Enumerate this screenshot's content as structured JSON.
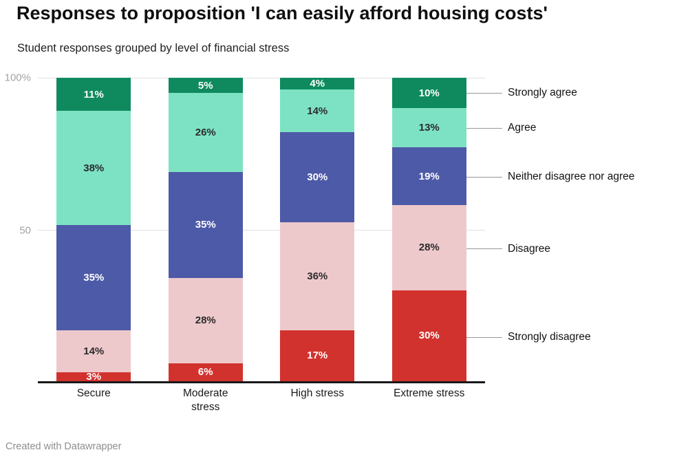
{
  "header": {
    "title": "Responses to proposition 'I can easily afford housing costs'",
    "subtitle": "Student responses grouped by level of financial stress"
  },
  "chart_data": {
    "type": "bar",
    "stacked": true,
    "title": "Responses to proposition 'I can easily afford housing costs'",
    "subtitle": "Student responses grouped by level of financial stress",
    "xlabel": "",
    "ylabel": "",
    "value_suffix": "%",
    "categories": [
      "Secure",
      "Moderate stress",
      "High stress",
      "Extreme stress"
    ],
    "series": [
      {
        "name": "Strongly disagree",
        "color": "#d2322e",
        "label_color": "#ffffff",
        "values": [
          3,
          6,
          17,
          30
        ]
      },
      {
        "name": "Disagree",
        "color": "#eec9cc",
        "label_color": "#2b2b2b",
        "values": [
          14,
          28,
          36,
          28
        ]
      },
      {
        "name": "Neither disagree nor agree",
        "color": "#4d5aa7",
        "label_color": "#ffffff",
        "values": [
          35,
          35,
          30,
          19
        ]
      },
      {
        "name": "Agree",
        "color": "#7de2c3",
        "label_color": "#2b2b2b",
        "values": [
          38,
          26,
          14,
          13
        ]
      },
      {
        "name": "Strongly agree",
        "color": "#0f8a5f",
        "label_color": "#ffffff",
        "values": [
          11,
          5,
          4,
          10
        ]
      }
    ],
    "y_axis": {
      "ylim": [
        0,
        100
      ],
      "grid": true,
      "ticks": [
        {
          "label": "100%",
          "position": 0
        },
        {
          "label": "50",
          "position": 50
        }
      ]
    },
    "legend_position": "right-of-last-bar"
  },
  "footer": {
    "credit": "Created with Datawrapper"
  }
}
